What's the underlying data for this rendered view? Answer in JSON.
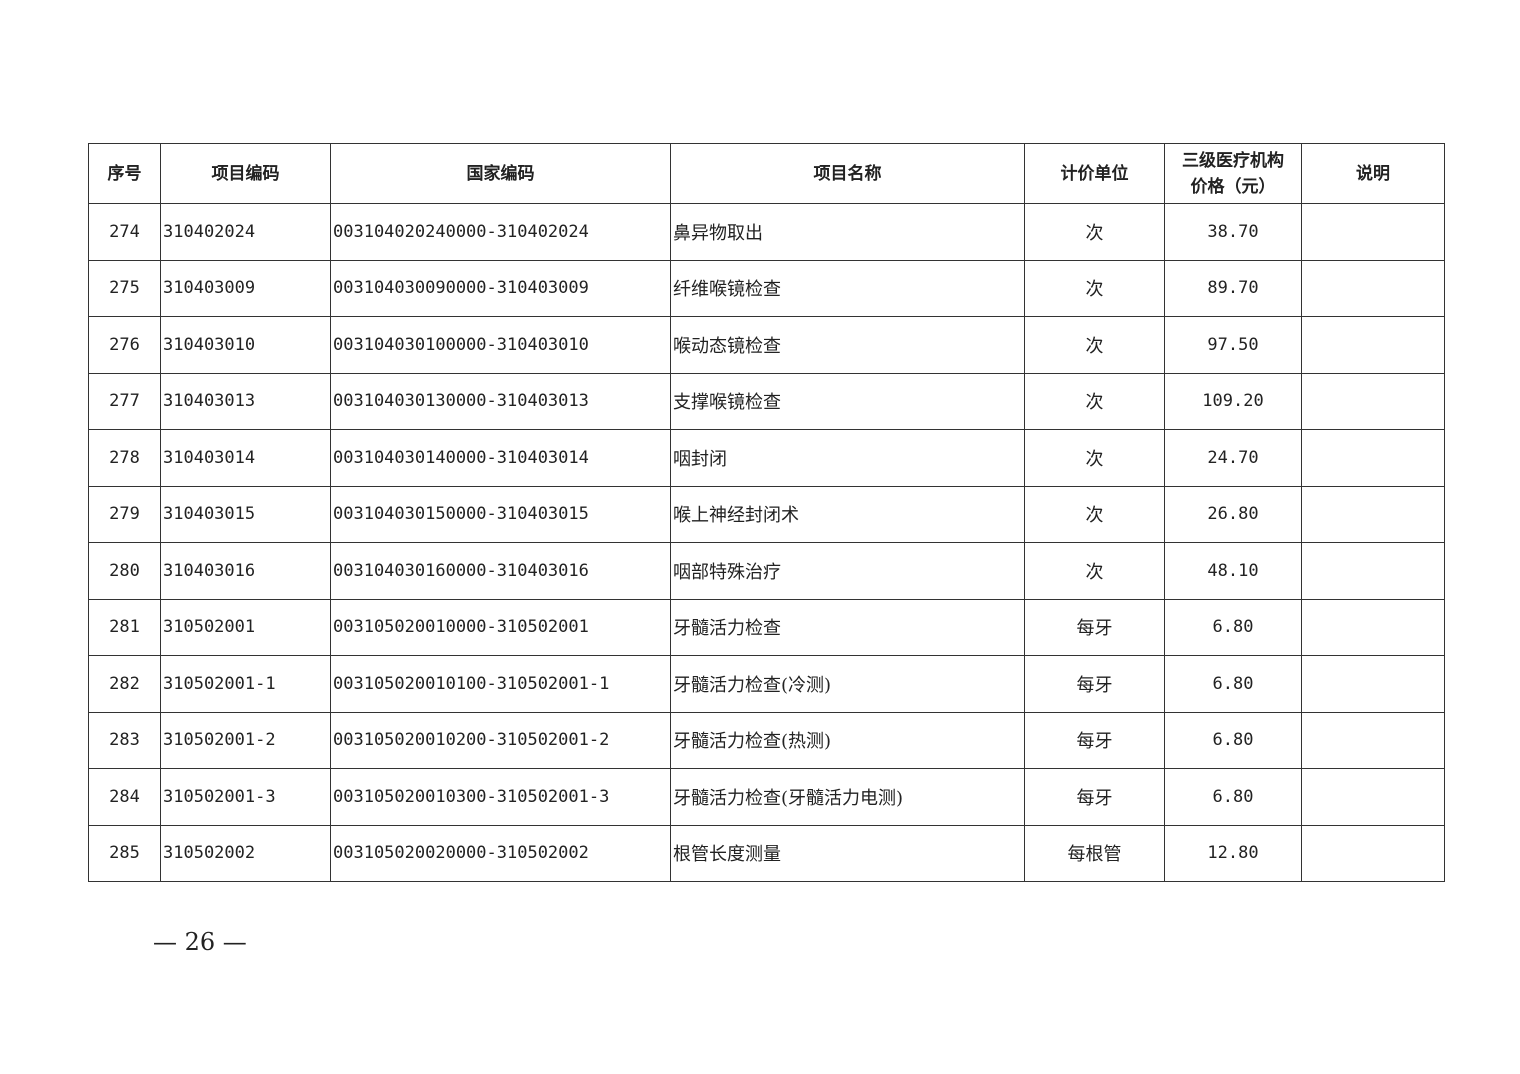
{
  "table": {
    "headers": [
      "序号",
      "项目编码",
      "国家编码",
      "项目名称",
      "计价单位",
      "三级医疗机构价格（元）",
      "说明"
    ],
    "header_price_line1": "三级医疗机构",
    "header_price_line2": "价格（元）",
    "rows": [
      [
        "274",
        "310402024",
        "003104020240000-310402024",
        "鼻异物取出",
        "次",
        "38.70",
        ""
      ],
      [
        "275",
        "310403009",
        "003104030090000-310403009",
        "纤维喉镜检查",
        "次",
        "89.70",
        ""
      ],
      [
        "276",
        "310403010",
        "003104030100000-310403010",
        "喉动态镜检查",
        "次",
        "97.50",
        ""
      ],
      [
        "277",
        "310403013",
        "003104030130000-310403013",
        "支撑喉镜检查",
        "次",
        "109.20",
        ""
      ],
      [
        "278",
        "310403014",
        "003104030140000-310403014",
        "咽封闭",
        "次",
        "24.70",
        ""
      ],
      [
        "279",
        "310403015",
        "003104030150000-310403015",
        "喉上神经封闭术",
        "次",
        "26.80",
        ""
      ],
      [
        "280",
        "310403016",
        "003104030160000-310403016",
        "咽部特殊治疗",
        "次",
        "48.10",
        ""
      ],
      [
        "281",
        "310502001",
        "003105020010000-310502001",
        "牙髓活力检查",
        "每牙",
        "6.80",
        ""
      ],
      [
        "282",
        "310502001-1",
        "003105020010100-310502001-1",
        "牙髓活力检查(冷测)",
        "每牙",
        "6.80",
        ""
      ],
      [
        "283",
        "310502001-2",
        "003105020010200-310502001-2",
        "牙髓活力检查(热测)",
        "每牙",
        "6.80",
        ""
      ],
      [
        "284",
        "310502001-3",
        "003105020010300-310502001-3",
        "牙髓活力检查(牙髓活力电测)",
        "每牙",
        "6.80",
        ""
      ],
      [
        "285",
        "310502002",
        "003105020020000-310502002",
        "根管长度测量",
        "每根管",
        "12.80",
        ""
      ]
    ]
  },
  "page_number": "— 26 —"
}
